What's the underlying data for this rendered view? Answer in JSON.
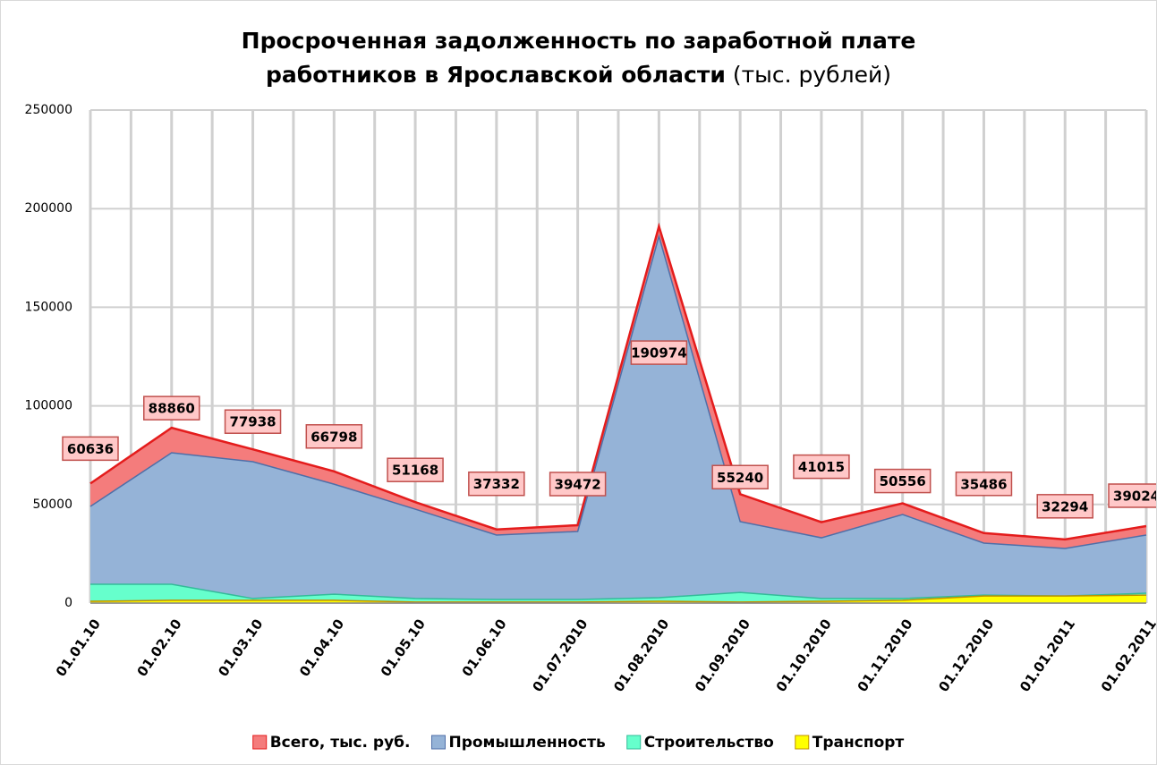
{
  "chart_data": {
    "type": "area",
    "title": "Просроченная задолженность по заработной плате работников в Ярославской области",
    "title_unit": "(тыс. рублей)",
    "categories": [
      "01.01.10",
      "01.02.10",
      "01.03.10",
      "01.04.10",
      "01.05.10",
      "01.06.10",
      "01.07.2010",
      "01.08.2010",
      "01.09.2010",
      "01.10.2010",
      "01.11.2010",
      "01.12.2010",
      "01.01.2011",
      "01.02.2011"
    ],
    "series": [
      {
        "name": "Всего, тыс. руб.",
        "color": "#f47c7c",
        "stroke": "#e41c1c",
        "values": [
          60636,
          88860,
          77938,
          66798,
          51168,
          37332,
          39472,
          190974,
          55240,
          41015,
          50556,
          35486,
          32294,
          39024
        ]
      },
      {
        "name": "Промышленность",
        "color": "#95b3d7",
        "stroke": "#4f6fa8",
        "values": [
          49000,
          76200,
          71700,
          60300,
          47600,
          34500,
          36300,
          186000,
          41300,
          33100,
          44900,
          30400,
          27700,
          34500
        ]
      },
      {
        "name": "Строительство",
        "color": "#66ffcc",
        "stroke": "#33bb99",
        "values": [
          9500,
          9500,
          2300,
          4500,
          2300,
          1800,
          1800,
          2700,
          5400,
          2300,
          2300,
          4000,
          3600,
          5000
        ]
      },
      {
        "name": "Транспорт",
        "color": "#ffff00",
        "stroke": "#c09000",
        "values": [
          900,
          1400,
          1400,
          1400,
          500,
          500,
          500,
          900,
          500,
          900,
          1400,
          3600,
          3600,
          4000
        ]
      }
    ],
    "data_labels_series": 0,
    "ylim": [
      0,
      250000
    ],
    "yticks": [
      0,
      50000,
      100000,
      150000,
      200000,
      250000
    ],
    "grid": true,
    "legend": "bottom"
  }
}
